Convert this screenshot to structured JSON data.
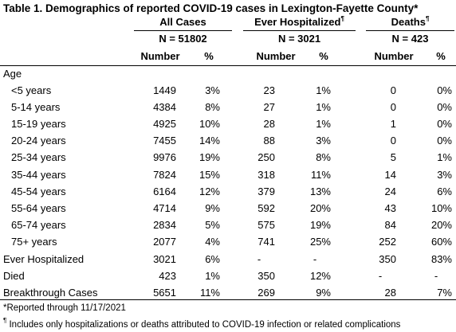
{
  "title": "Table 1. Demographics of reported COVID-19 cases in Lexington-Fayette County*",
  "groups": [
    {
      "name": "All Cases",
      "n": "N = 51802"
    },
    {
      "name": "Ever Hospitalized",
      "mark": "¶",
      "n": "N = 3021"
    },
    {
      "name": "Deaths",
      "mark": "¶",
      "n": "N = 423"
    }
  ],
  "subheaders": [
    "Number",
    "%",
    "Number",
    "%",
    "Number",
    "%"
  ],
  "section": "Age",
  "rows": [
    [
      "<5 years",
      "1449",
      "3%",
      "23",
      "1%",
      "0",
      "0%"
    ],
    [
      "5-14 years",
      "4384",
      "8%",
      "27",
      "1%",
      "0",
      "0%"
    ],
    [
      "15-19 years",
      "4925",
      "10%",
      "28",
      "1%",
      "1",
      "0%"
    ],
    [
      "20-24 years",
      "7455",
      "14%",
      "88",
      "3%",
      "0",
      "0%"
    ],
    [
      "25-34 years",
      "9976",
      "19%",
      "250",
      "8%",
      "5",
      "1%"
    ],
    [
      "35-44 years",
      "7824",
      "15%",
      "318",
      "11%",
      "14",
      "3%"
    ],
    [
      "45-54 years",
      "6164",
      "12%",
      "379",
      "13%",
      "24",
      "6%"
    ],
    [
      "55-64 years",
      "4714",
      "9%",
      "592",
      "20%",
      "43",
      "10%"
    ],
    [
      "65-74 years",
      "2834",
      "5%",
      "575",
      "19%",
      "84",
      "20%"
    ],
    [
      "75+ years",
      "2077",
      "4%",
      "741",
      "25%",
      "252",
      "60%"
    ],
    [
      "Ever Hospitalized",
      "3021",
      "6%",
      "-",
      "-",
      "350",
      "83%"
    ],
    [
      "Died",
      "423",
      "1%",
      "350",
      "12%",
      "-",
      "-"
    ],
    [
      "Breakthrough Cases",
      "5651",
      "11%",
      "269",
      "9%",
      "28",
      "7%"
    ]
  ],
  "footnotes": [
    {
      "text": "*Reported through 11/17/2021"
    },
    {
      "mark": "¶",
      "text": " Includes only hospitalizations or deaths attributed to COVID-19 infection or related complications"
    }
  ]
}
